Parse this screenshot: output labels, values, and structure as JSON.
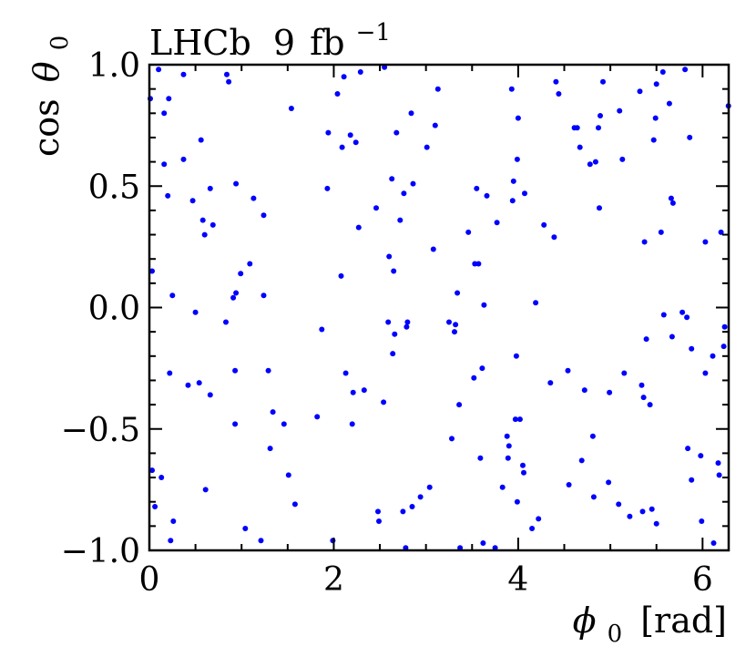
{
  "chart_data": {
    "type": "scatter",
    "experiment_label": "LHCb",
    "luminosity_label": "9",
    "luminosity_unit": "fb",
    "luminosity_exp": "−1",
    "xlabel_symbol": "ϕ",
    "xlabel_sub": "0",
    "xlabel_unit": "[rad]",
    "ylabel_prefix": "cos",
    "ylabel_symbol": "θ",
    "ylabel_sub": "0",
    "xlim": [
      0,
      6.2832
    ],
    "ylim": [
      -1.0,
      1.0
    ],
    "x_ticks": [
      {
        "value": 0,
        "label": "0"
      },
      {
        "value": 2,
        "label": "2"
      },
      {
        "value": 4,
        "label": "4"
      },
      {
        "value": 6,
        "label": "6"
      }
    ],
    "y_ticks": [
      {
        "value": -1.0,
        "label": "−1.0"
      },
      {
        "value": -0.5,
        "label": "−0.5"
      },
      {
        "value": 0.0,
        "label": "0.0"
      },
      {
        "value": 0.5,
        "label": "0.5"
      },
      {
        "value": 1.0,
        "label": "1.0"
      }
    ],
    "marker_color": "#0000ff",
    "grid": false,
    "points": [
      [
        0.01,
        0.86
      ],
      [
        0.03,
        0.15
      ],
      [
        0.03,
        -0.67
      ],
      [
        0.06,
        -0.82
      ],
      [
        0.1,
        0.98
      ],
      [
        0.13,
        -0.7
      ],
      [
        0.16,
        0.59
      ],
      [
        0.16,
        0.8
      ],
      [
        0.2,
        0.46
      ],
      [
        0.21,
        0.86
      ],
      [
        0.22,
        -0.27
      ],
      [
        0.23,
        -0.96
      ],
      [
        0.25,
        0.05
      ],
      [
        0.26,
        -0.88
      ],
      [
        0.37,
        0.61
      ],
      [
        0.37,
        0.96
      ],
      [
        0.42,
        -0.32
      ],
      [
        0.47,
        0.44
      ],
      [
        0.5,
        -0.02
      ],
      [
        0.54,
        -0.31
      ],
      [
        0.56,
        0.69
      ],
      [
        0.58,
        0.36
      ],
      [
        0.6,
        0.3
      ],
      [
        0.61,
        -0.75
      ],
      [
        0.66,
        -0.36
      ],
      [
        0.66,
        0.49
      ],
      [
        0.69,
        0.34
      ],
      [
        0.84,
        0.96
      ],
      [
        0.83,
        -0.06
      ],
      [
        0.86,
        0.93
      ],
      [
        0.91,
        0.04
      ],
      [
        0.93,
        -0.26
      ],
      [
        0.93,
        -0.48
      ],
      [
        0.94,
        0.06
      ],
      [
        0.94,
        0.51
      ],
      [
        0.99,
        0.14
      ],
      [
        1.04,
        -0.91
      ],
      [
        1.09,
        0.18
      ],
      [
        1.13,
        0.45
      ],
      [
        1.21,
        -0.96
      ],
      [
        1.24,
        0.38
      ],
      [
        1.24,
        0.05
      ],
      [
        1.29,
        -0.26
      ],
      [
        1.31,
        -0.58
      ],
      [
        1.34,
        -0.43
      ],
      [
        1.46,
        -0.48
      ],
      [
        1.51,
        -0.69
      ],
      [
        1.54,
        0.82
      ],
      [
        1.58,
        -0.81
      ],
      [
        1.82,
        -0.45
      ],
      [
        1.87,
        -0.09
      ],
      [
        1.93,
        0.49
      ],
      [
        1.94,
        0.72
      ],
      [
        1.99,
        -0.96
      ],
      [
        2.04,
        0.88
      ],
      [
        2.08,
        0.13
      ],
      [
        2.09,
        0.66
      ],
      [
        2.11,
        0.95
      ],
      [
        2.13,
        -0.27
      ],
      [
        2.18,
        0.71
      ],
      [
        2.2,
        -0.48
      ],
      [
        2.21,
        -0.35
      ],
      [
        2.24,
        0.68
      ],
      [
        2.27,
        0.33
      ],
      [
        2.29,
        0.97
      ],
      [
        2.33,
        -0.34
      ],
      [
        2.46,
        0.41
      ],
      [
        2.48,
        -0.84
      ],
      [
        2.49,
        -0.88
      ],
      [
        2.54,
        -0.39
      ],
      [
        2.55,
        0.99
      ],
      [
        2.59,
        -0.06
      ],
      [
        2.6,
        0.21
      ],
      [
        2.63,
        0.53
      ],
      [
        2.64,
        -0.19
      ],
      [
        2.65,
        0.15
      ],
      [
        2.66,
        -0.11
      ],
      [
        2.68,
        0.72
      ],
      [
        2.72,
        0.36
      ],
      [
        2.75,
        -0.84
      ],
      [
        2.76,
        0.47
      ],
      [
        2.78,
        -0.99
      ],
      [
        2.79,
        -0.08
      ],
      [
        2.8,
        -0.06
      ],
      [
        2.84,
        0.8
      ],
      [
        2.85,
        -0.82
      ],
      [
        2.86,
        0.51
      ],
      [
        2.94,
        -0.78
      ],
      [
        3.01,
        0.66
      ],
      [
        3.04,
        -0.74
      ],
      [
        3.08,
        0.24
      ],
      [
        3.1,
        0.75
      ],
      [
        3.13,
        0.9
      ],
      [
        3.25,
        -0.06
      ],
      [
        3.28,
        -0.54
      ],
      [
        3.31,
        -0.1
      ],
      [
        3.32,
        -0.07
      ],
      [
        3.34,
        0.06
      ],
      [
        3.36,
        -0.4
      ],
      [
        3.37,
        -0.99
      ],
      [
        3.46,
        0.31
      ],
      [
        3.52,
        -0.29
      ],
      [
        3.53,
        0.18
      ],
      [
        3.55,
        0.49
      ],
      [
        3.57,
        0.18
      ],
      [
        3.59,
        -0.62
      ],
      [
        3.61,
        -0.25
      ],
      [
        3.62,
        -0.97
      ],
      [
        3.63,
        0.01
      ],
      [
        3.66,
        0.46
      ],
      [
        3.75,
        -0.99
      ],
      [
        3.77,
        0.35
      ],
      [
        3.83,
        -0.74
      ],
      [
        3.88,
        -0.53
      ],
      [
        3.89,
        -0.62
      ],
      [
        3.9,
        -0.57
      ],
      [
        3.93,
        0.9
      ],
      [
        3.94,
        0.44
      ],
      [
        3.95,
        0.52
      ],
      [
        3.97,
        -0.46
      ],
      [
        3.98,
        -0.2
      ],
      [
        3.99,
        -0.8
      ],
      [
        3.99,
        0.61
      ],
      [
        4.0,
        0.78
      ],
      [
        4.02,
        -0.46
      ],
      [
        4.05,
        -0.65
      ],
      [
        4.06,
        -0.68
      ],
      [
        4.07,
        0.47
      ],
      [
        4.15,
        -0.91
      ],
      [
        4.19,
        0.02
      ],
      [
        4.22,
        -0.87
      ],
      [
        4.28,
        0.34
      ],
      [
        4.35,
        -0.31
      ],
      [
        4.39,
        0.29
      ],
      [
        4.41,
        0.93
      ],
      [
        4.44,
        0.88
      ],
      [
        4.54,
        -0.26
      ],
      [
        4.55,
        -0.73
      ],
      [
        4.61,
        0.74
      ],
      [
        4.64,
        0.74
      ],
      [
        4.67,
        0.66
      ],
      [
        4.69,
        -0.63
      ],
      [
        4.72,
        -0.34
      ],
      [
        4.78,
        0.59
      ],
      [
        4.81,
        -0.53
      ],
      [
        4.82,
        -0.78
      ],
      [
        4.84,
        0.6
      ],
      [
        4.87,
        0.74
      ],
      [
        4.88,
        0.41
      ],
      [
        4.89,
        0.79
      ],
      [
        4.92,
        0.93
      ],
      [
        4.98,
        -0.72
      ],
      [
        4.99,
        -0.35
      ],
      [
        5.09,
        -0.81
      ],
      [
        5.1,
        0.81
      ],
      [
        5.13,
        0.61
      ],
      [
        5.15,
        -0.27
      ],
      [
        5.21,
        -0.86
      ],
      [
        5.32,
        0.89
      ],
      [
        5.34,
        -0.32
      ],
      [
        5.35,
        -0.84
      ],
      [
        5.36,
        -0.37
      ],
      [
        5.37,
        0.27
      ],
      [
        5.39,
        -0.13
      ],
      [
        5.43,
        -0.4
      ],
      [
        5.45,
        -0.83
      ],
      [
        5.47,
        0.69
      ],
      [
        5.49,
        0.78
      ],
      [
        5.5,
        -0.89
      ],
      [
        5.5,
        0.92
      ],
      [
        5.55,
        0.31
      ],
      [
        5.57,
        0.97
      ],
      [
        5.58,
        -0.03
      ],
      [
        5.64,
        0.84
      ],
      [
        5.66,
        0.45
      ],
      [
        5.67,
        -0.12
      ],
      [
        5.68,
        0.43
      ],
      [
        5.78,
        -0.02
      ],
      [
        5.81,
        0.98
      ],
      [
        5.83,
        -0.04
      ],
      [
        5.84,
        -0.58
      ],
      [
        5.86,
        0.7
      ],
      [
        5.88,
        -0.71
      ],
      [
        5.88,
        -0.17
      ],
      [
        5.98,
        -0.61
      ],
      [
        5.99,
        -0.88
      ],
      [
        6.03,
        0.27
      ],
      [
        6.03,
        -0.27
      ],
      [
        6.11,
        -0.2
      ],
      [
        6.12,
        -0.97
      ],
      [
        6.17,
        -0.64
      ],
      [
        6.18,
        -0.69
      ],
      [
        6.2,
        0.31
      ],
      [
        6.23,
        -0.16
      ],
      [
        6.24,
        -0.08
      ],
      [
        6.28,
        0.83
      ]
    ]
  }
}
